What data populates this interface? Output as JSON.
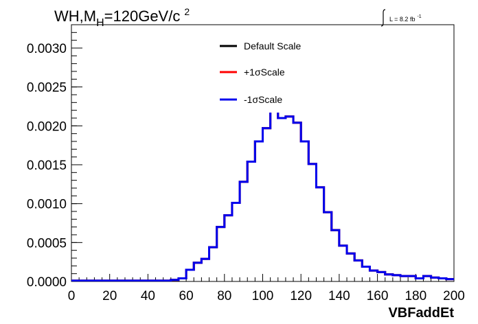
{
  "chart_data": {
    "type": "line",
    "title_main": "WH,M",
    "title_sub": "H",
    "title_rest": "=120GeV/c",
    "title_sup": "2",
    "lumi_label": "L = 8.2 fb",
    "lumi_sup": "-1",
    "xlabel": "VBFaddEt",
    "ylabel": "",
    "xlim": [
      0,
      200
    ],
    "ylim": [
      0,
      0.0033
    ],
    "x_ticks": [
      "0",
      "20",
      "40",
      "60",
      "80",
      "100",
      "120",
      "140",
      "160",
      "180",
      "200"
    ],
    "y_ticks": [
      "0.0000",
      "0.0005",
      "0.0010",
      "0.0015",
      "0.0020",
      "0.0025",
      "0.0030"
    ],
    "bin_edges": [
      0,
      4,
      8,
      12,
      16,
      20,
      24,
      28,
      32,
      36,
      40,
      44,
      48,
      52,
      56,
      60,
      64,
      68,
      72,
      76,
      80,
      84,
      88,
      92,
      96,
      100,
      104,
      108,
      112,
      116,
      120,
      124,
      128,
      132,
      136,
      140,
      144,
      148,
      152,
      156,
      160,
      164,
      168,
      172,
      176,
      180,
      184,
      188,
      192,
      196,
      200
    ],
    "series": [
      {
        "name": "Default Scale",
        "color": "#000000",
        "values": [
          1e-05,
          1e-05,
          1e-05,
          1e-05,
          1e-05,
          1e-05,
          1e-05,
          1e-05,
          1e-05,
          1e-05,
          1e-05,
          1e-05,
          1e-05,
          2e-05,
          4e-05,
          0.00015,
          0.00024,
          0.00029,
          0.00044,
          0.0007,
          0.00085,
          0.00101,
          0.00128,
          0.00154,
          0.0018,
          0.00197,
          0.00219,
          0.0021,
          0.00212,
          0.00204,
          0.0018,
          0.00151,
          0.00121,
          0.00089,
          0.00066,
          0.00046,
          0.00036,
          0.00027,
          0.00019,
          0.00014,
          0.00012,
          9e-05,
          8e-05,
          7e-05,
          7e-05,
          4e-05,
          7e-05,
          5e-05,
          4e-05,
          3e-05
        ]
      },
      {
        "name": "+1σScale",
        "color": "#ff0000",
        "values": [
          1e-05,
          1e-05,
          1e-05,
          1e-05,
          1e-05,
          1e-05,
          1e-05,
          1e-05,
          1e-05,
          1e-05,
          1e-05,
          1e-05,
          1e-05,
          2e-05,
          4e-05,
          0.00015,
          0.00024,
          0.00029,
          0.00044,
          0.0007,
          0.00085,
          0.00101,
          0.00128,
          0.00154,
          0.0018,
          0.00197,
          0.00219,
          0.0021,
          0.00212,
          0.00204,
          0.0018,
          0.00151,
          0.00121,
          0.00089,
          0.00066,
          0.00046,
          0.00036,
          0.00027,
          0.00019,
          0.00014,
          0.00012,
          9e-05,
          8e-05,
          7e-05,
          7e-05,
          4e-05,
          7e-05,
          5e-05,
          4e-05,
          3e-05
        ]
      },
      {
        "name": "-1σScale",
        "color": "#0000ee",
        "values": [
          1e-05,
          1e-05,
          1e-05,
          1e-05,
          1e-05,
          1e-05,
          1e-05,
          1e-05,
          1e-05,
          1e-05,
          1e-05,
          1e-05,
          1e-05,
          2e-05,
          4e-05,
          0.00015,
          0.00024,
          0.00029,
          0.00044,
          0.0007,
          0.00085,
          0.00101,
          0.00128,
          0.00154,
          0.0018,
          0.00197,
          0.00219,
          0.0021,
          0.00212,
          0.00204,
          0.0018,
          0.00151,
          0.00121,
          0.00089,
          0.00066,
          0.00046,
          0.00036,
          0.00027,
          0.00019,
          0.00014,
          0.00012,
          9e-05,
          8e-05,
          7e-05,
          7e-05,
          4e-05,
          7e-05,
          5e-05,
          4e-05,
          3e-05
        ]
      }
    ],
    "legend_placement": "top-center",
    "grid": false
  }
}
